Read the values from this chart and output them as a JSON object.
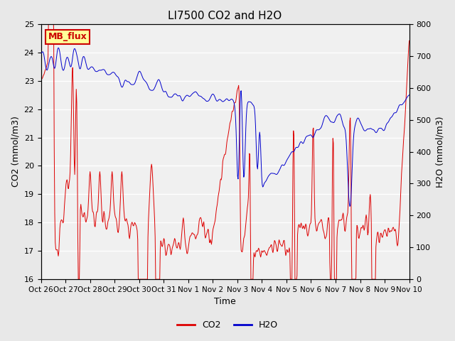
{
  "title": "LI7500 CO2 and H2O",
  "xlabel": "Time",
  "ylabel_left": "CO2 (mmol/m3)",
  "ylabel_right": "H2O (mmol/m3)",
  "ylim_left": [
    16.0,
    25.0
  ],
  "ylim_right": [
    0,
    800
  ],
  "yticks_left": [
    16.0,
    17.0,
    18.0,
    19.0,
    20.0,
    21.0,
    22.0,
    23.0,
    24.0,
    25.0
  ],
  "yticks_right": [
    0,
    100,
    200,
    300,
    400,
    500,
    600,
    700,
    800
  ],
  "xtick_labels": [
    "Oct 26",
    "Oct 27",
    "Oct 28",
    "Oct 29",
    "Oct 30",
    "Oct 31",
    "Nov 1",
    "Nov 2",
    "Nov 3",
    "Nov 4",
    "Nov 5",
    "Nov 6",
    "Nov 7",
    "Nov 8",
    "Nov 9",
    "Nov 10"
  ],
  "annotation_text": "MB_flux",
  "annotation_color": "#cc0000",
  "annotation_bg": "#ffff99",
  "annotation_border": "#cc0000",
  "co2_color": "#dd0000",
  "h2o_color": "#0000cc",
  "legend_co2": "CO2",
  "legend_h2o": "H2O",
  "background_color": "#e8e8e8",
  "plot_bg_color": "#f0f0f0",
  "grid_color": "#ffffff",
  "title_fontsize": 11,
  "axis_label_fontsize": 9,
  "tick_fontsize": 8,
  "legend_fontsize": 9
}
